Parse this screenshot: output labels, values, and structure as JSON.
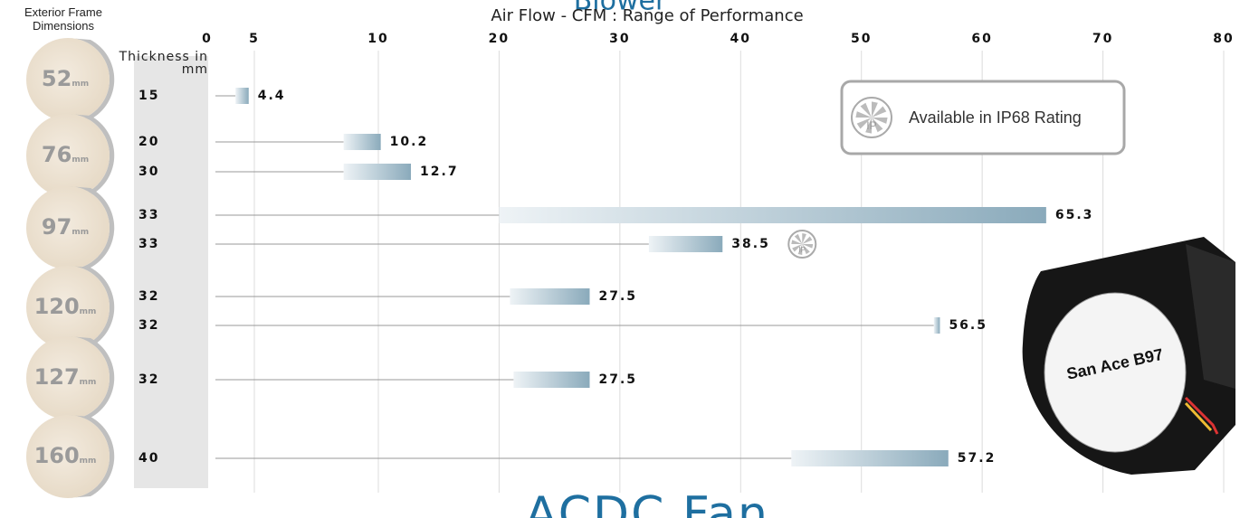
{
  "chart_data": {
    "type": "range-bar",
    "banner": "Blower",
    "title": "Air Flow  - CFM : Range of Performance",
    "frame_header": "Exterior Frame Dimensions",
    "thickness_header": "Thickness in mm",
    "size_unit": "mm",
    "footer": "ACDC Fan",
    "ip_badge": "Available in IP68 Rating",
    "ip_icon": "IP",
    "product_label": "San Ace B97",
    "xlim": [
      0,
      80
    ],
    "xticks": [
      0,
      5,
      10,
      20,
      30,
      40,
      50,
      60,
      70,
      80
    ],
    "grid": true,
    "bar_color": "#8aaabb",
    "groups": [
      {
        "size": "52",
        "rows": [
          {
            "thickness": "15",
            "start": 3.0,
            "value": 4.4
          }
        ]
      },
      {
        "size": "76",
        "rows": [
          {
            "thickness": "20",
            "start": 8.6,
            "value": 10.2
          },
          {
            "thickness": "30",
            "start": 8.6,
            "value": 12.7
          }
        ]
      },
      {
        "size": "97",
        "rows": [
          {
            "thickness": "33",
            "start": 20,
            "value": 65.3
          },
          {
            "thickness": "33",
            "start": 32.4,
            "value": 38.5,
            "ip68": true
          }
        ]
      },
      {
        "size": "120",
        "rows": [
          {
            "thickness": "32",
            "start": 20.9,
            "value": 27.5
          },
          {
            "thickness": "32",
            "start": 56,
            "value": 56.5
          }
        ]
      },
      {
        "size": "127",
        "rows": [
          {
            "thickness": "32",
            "start": 21.2,
            "value": 27.5
          }
        ]
      },
      {
        "size": "160",
        "rows": [
          {
            "thickness": "40",
            "start": 44.2,
            "value": 57.2
          }
        ]
      }
    ]
  }
}
